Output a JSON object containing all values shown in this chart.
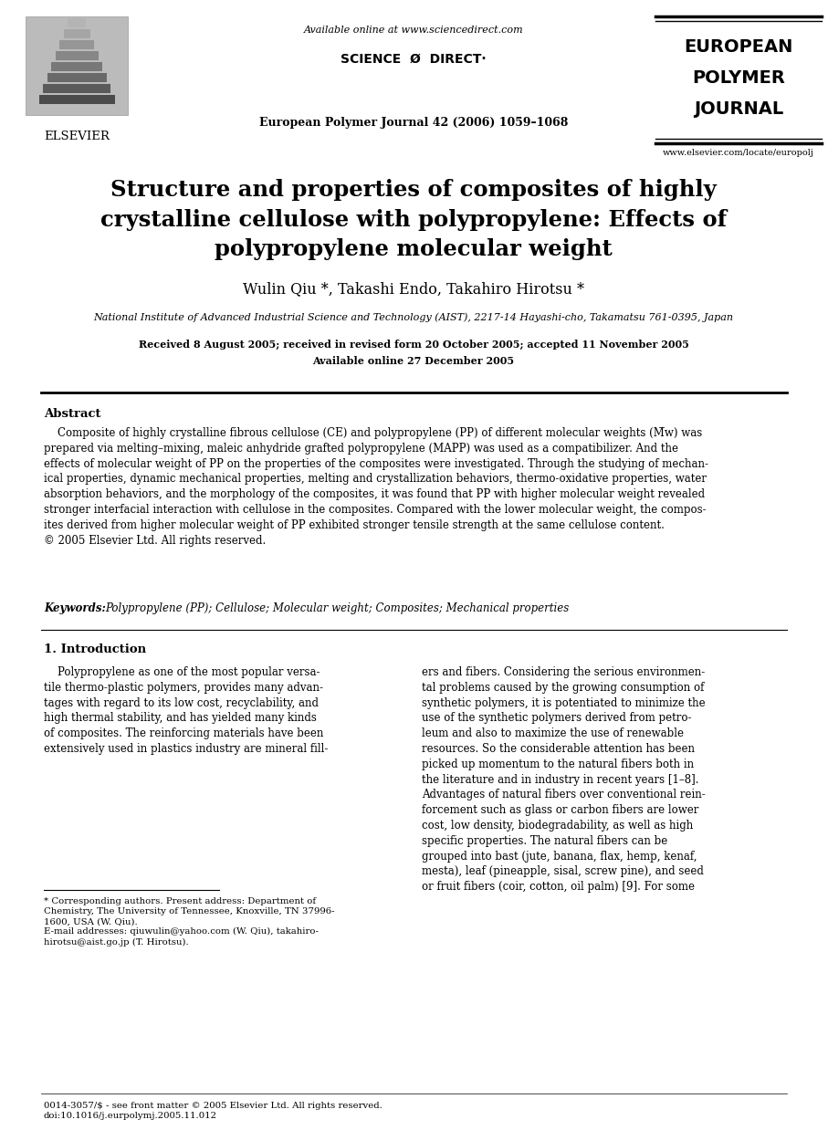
{
  "bg_color": "#ffffff",
  "header": {
    "elsevier_text": "ELSEVIER",
    "available_online": "Available online at www.sciencedirect.com",
    "sciencedirect": "SCIENCE Ø DIRECT·",
    "journal_line": "European Polymer Journal 42 (2006) 1059–1068",
    "journal_name_line1": "EUROPEAN",
    "journal_name_line2": "POLYMER",
    "journal_name_line3": "JOURNAL",
    "journal_url": "www.elsevier.com/locate/europolj"
  },
  "title": "Structure and properties of composites of highly\ncrystalline cellulose with polypropylene: Effects of\npolypropylene molecular weight",
  "authors": "Wulin Qiu *, Takashi Endo, Takahiro Hirotsu *",
  "affiliation": "National Institute of Advanced Industrial Science and Technology (AIST), 2217-14 Hayashi-cho, Takamatsu 761-0395, Japan",
  "received": "Received 8 August 2005; received in revised form 20 October 2005; accepted 11 November 2005",
  "available": "Available online 27 December 2005",
  "abstract_label": "Abstract",
  "abstract_text": "    Composite of highly crystalline fibrous cellulose (CE) and polypropylene (PP) of different molecular weights (M̅w) was\nprepared via melting–mixing, maleic anhydride grafted polypropylene (MAPP) was used as a compatibilizer. And the\neffects of molecular weight of PP on the properties of the composites were investigated. Through the studying of mechan-\nical properties, dynamic mechanical properties, melting and crystallization behaviors, thermo-oxidative properties, water\nabsorption behaviors, and the morphology of the composites, it was found that PP with higher molecular weight revealed\nstronger interfacial interaction with cellulose in the composites. Compared with the lower molecular weight, the compos-\nites derived from higher molecular weight of PP exhibited stronger tensile strength at the same cellulose content.\n© 2005 Elsevier Ltd. All rights reserved.",
  "keywords_label": "Keywords: ",
  "keywords_text": "Polypropylene (PP); Cellulose; Molecular weight; Composites; Mechanical properties",
  "section1_title": "1. Introduction",
  "section1_col1": "    Polypropylene as one of the most popular versa-\ntile thermo-plastic polymers, provides many advan-\ntages with regard to its low cost, recyclability, and\nhigh thermal stability, and has yielded many kinds\nof composites. The reinforcing materials have been\nextensively used in plastics industry are mineral fill-",
  "section1_col2": "ers and fibers. Considering the serious environmen-\ntal problems caused by the growing consumption of\nsynthetic polymers, it is potentiated to minimize the\nuse of the synthetic polymers derived from petro-\nleum and also to maximize the use of renewable\nresources. So the considerable attention has been\npicked up momentum to the natural fibers both in\nthe literature and in industry in recent years [1–8].\nAdvantages of natural fibers over conventional rein-\nforcement such as glass or carbon fibers are lower\ncost, low density, biodegradability, as well as high\nspecific properties. The natural fibers can be\ngrouped into bast (jute, banana, flax, hemp, kenaf,\nmesta), leaf (pineapple, sisal, screw pine), and seed\nor fruit fibers (coir, cotton, oil palm) [9]. For some",
  "footnote": "* Corresponding authors. Present address: Department of\nChemistry, The University of Tennessee, Knoxville, TN 37996-\n1600, USA (W. Qiu).\nE-mail addresses: qiuwulin@yahoo.com (W. Qiu), takahiro-\nhirotsu@aist.go.jp (T. Hirotsu).",
  "footer_left": "0014-3057/$ - see front matter © 2005 Elsevier Ltd. All rights reserved.\ndoi:10.1016/j.eurpolymj.2005.11.012"
}
